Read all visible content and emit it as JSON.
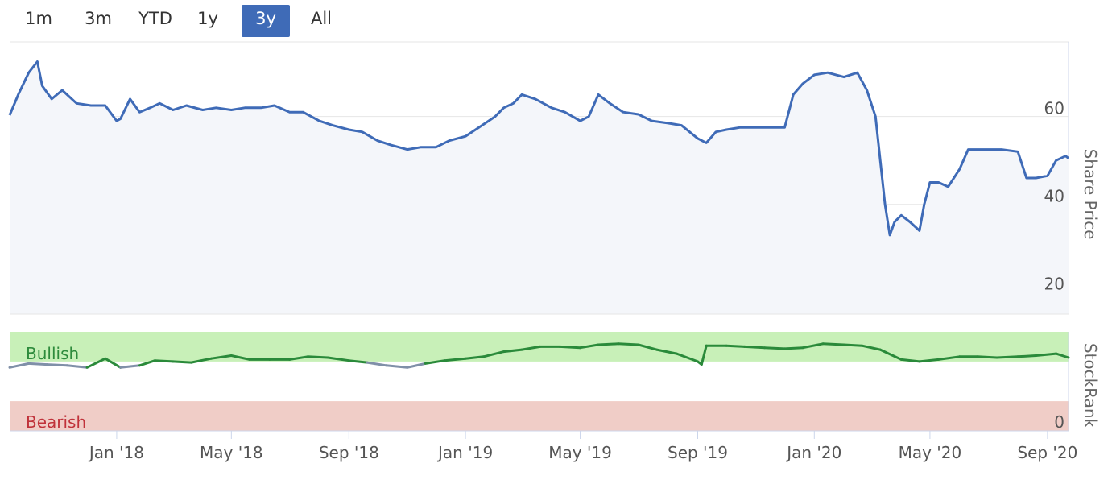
{
  "range_selector": {
    "buttons": [
      "1m",
      "3m",
      "YTD",
      "1y",
      "3y",
      "All"
    ],
    "active": "3y"
  },
  "colors": {
    "price_line": "#3f6bb7",
    "price_fill": "#f4f6fa",
    "bullish_band": "#c8f0b8",
    "bullish_text": "#2e8b3c",
    "bearish_band": "#f0cdc7",
    "bearish_text": "#c0323a",
    "rank_bullish_line": "#2a8a3a",
    "rank_other_line": "#8090a8",
    "active_button": "#3f6bb7"
  },
  "chart_data": [
    {
      "type": "line",
      "ylabel": "Share Price",
      "ylim": [
        15,
        77
      ],
      "yticks": [
        20,
        40,
        60
      ],
      "xlim": [
        "2017-09-11",
        "2020-09-23"
      ],
      "x": [
        "2017-09-11",
        "2017-09-20",
        "2017-10-01",
        "2017-10-10",
        "2017-10-15",
        "2017-10-25",
        "2017-11-05",
        "2017-11-20",
        "2017-12-05",
        "2017-12-20",
        "2018-01-01",
        "2018-01-05",
        "2018-01-15",
        "2018-01-25",
        "2018-02-05",
        "2018-02-15",
        "2018-03-01",
        "2018-03-15",
        "2018-04-01",
        "2018-04-15",
        "2018-05-01",
        "2018-05-15",
        "2018-06-01",
        "2018-06-15",
        "2018-07-01",
        "2018-07-15",
        "2018-08-01",
        "2018-08-15",
        "2018-09-01",
        "2018-09-15",
        "2018-10-01",
        "2018-10-15",
        "2018-11-01",
        "2018-11-15",
        "2018-12-01",
        "2018-12-15",
        "2019-01-01",
        "2019-01-15",
        "2019-02-01",
        "2019-02-10",
        "2019-02-20",
        "2019-03-01",
        "2019-03-15",
        "2019-04-01",
        "2019-04-15",
        "2019-05-01",
        "2019-05-10",
        "2019-05-20",
        "2019-06-01",
        "2019-06-15",
        "2019-07-01",
        "2019-07-15",
        "2019-08-01",
        "2019-08-15",
        "2019-09-01",
        "2019-09-10",
        "2019-09-20",
        "2019-10-01",
        "2019-10-15",
        "2019-11-01",
        "2019-11-15",
        "2019-12-01",
        "2019-12-10",
        "2019-12-20",
        "2020-01-01",
        "2020-01-15",
        "2020-02-01",
        "2020-02-15",
        "2020-02-25",
        "2020-03-05",
        "2020-03-10",
        "2020-03-15",
        "2020-03-20",
        "2020-03-25",
        "2020-04-01",
        "2020-04-10",
        "2020-04-20",
        "2020-04-25",
        "2020-05-01",
        "2020-05-10",
        "2020-05-20",
        "2020-06-01",
        "2020-06-10",
        "2020-06-20",
        "2020-07-01",
        "2020-07-15",
        "2020-08-01",
        "2020-08-10",
        "2020-08-20",
        "2020-09-01",
        "2020-09-10",
        "2020-09-20",
        "2020-09-23"
      ],
      "series": [
        {
          "values": [
            60.3,
            65,
            70,
            72.5,
            67,
            64,
            66,
            63,
            62.5,
            62.5,
            59,
            59.5,
            64,
            61,
            62,
            63,
            61.5,
            62.5,
            61.5,
            62,
            61.5,
            62,
            62,
            62.5,
            61,
            61,
            59,
            58,
            57,
            56.5,
            54.5,
            53.5,
            52.5,
            53,
            53,
            54.5,
            55.5,
            57.5,
            60,
            62,
            63,
            65,
            64,
            62,
            61,
            59,
            60,
            65,
            63,
            61,
            60.5,
            59,
            58.5,
            58,
            55,
            54,
            56.5,
            57,
            57.5,
            57.5,
            57.5,
            57.5,
            65,
            67.5,
            69.5,
            70,
            69,
            70,
            66,
            60,
            50,
            40,
            33,
            36,
            37.5,
            36,
            34,
            40,
            45,
            45,
            44,
            48,
            52.5,
            52.5,
            52.5,
            52.5,
            52,
            46,
            46,
            46.5,
            50,
            51,
            50.5
          ]
        }
      ]
    },
    {
      "type": "line",
      "ylabel": "StockRank",
      "ylim": [
        0,
        100
      ],
      "yticks": [
        0
      ],
      "bands": [
        {
          "label": "Bullish",
          "from": 70,
          "to": 100
        },
        {
          "label": "Bearish",
          "from": 0,
          "to": 30
        }
      ],
      "x": [
        "2017-09-11",
        "2017-10-01",
        "2017-10-20",
        "2017-11-10",
        "2017-12-01",
        "2017-12-20",
        "2018-01-05",
        "2018-01-25",
        "2018-02-10",
        "2018-03-01",
        "2018-03-20",
        "2018-04-10",
        "2018-05-01",
        "2018-05-20",
        "2018-06-10",
        "2018-07-01",
        "2018-07-20",
        "2018-08-10",
        "2018-09-01",
        "2018-09-20",
        "2018-10-10",
        "2018-11-01",
        "2018-11-20",
        "2018-12-10",
        "2019-01-01",
        "2019-01-20",
        "2019-02-10",
        "2019-03-01",
        "2019-03-20",
        "2019-04-10",
        "2019-05-01",
        "2019-05-20",
        "2019-06-10",
        "2019-07-01",
        "2019-07-20",
        "2019-08-10",
        "2019-09-01",
        "2019-09-05",
        "2019-09-10",
        "2019-10-01",
        "2019-10-20",
        "2019-11-10",
        "2019-12-01",
        "2019-12-20",
        "2020-01-10",
        "2020-02-01",
        "2020-02-20",
        "2020-03-10",
        "2020-04-01",
        "2020-04-20",
        "2020-05-10",
        "2020-06-01",
        "2020-06-20",
        "2020-07-10",
        "2020-08-01",
        "2020-08-20",
        "2020-09-10",
        "2020-09-23"
      ],
      "series": [
        {
          "values": [
            64,
            68,
            67,
            66,
            64,
            73,
            64,
            66,
            71,
            70,
            69,
            73,
            76,
            72,
            72,
            72,
            75,
            74,
            71,
            69,
            66,
            64,
            68,
            71,
            73,
            75,
            80,
            82,
            85,
            85,
            84,
            87,
            88,
            87,
            82,
            78,
            70,
            67,
            86,
            86,
            85,
            84,
            83,
            84,
            88,
            87,
            86,
            82,
            72,
            70,
            72,
            75,
            75,
            74,
            75,
            76,
            78,
            74
          ]
        }
      ]
    }
  ],
  "x_axis": {
    "ticks": [
      {
        "label": "Jan '18",
        "date": "2018-01-01"
      },
      {
        "label": "May '18",
        "date": "2018-05-01"
      },
      {
        "label": "Sep '18",
        "date": "2018-09-01"
      },
      {
        "label": "Jan '19",
        "date": "2019-01-01"
      },
      {
        "label": "May '19",
        "date": "2019-05-01"
      },
      {
        "label": "Sep '19",
        "date": "2019-09-01"
      },
      {
        "label": "Jan '20",
        "date": "2020-01-01"
      },
      {
        "label": "May '20",
        "date": "2020-05-01"
      },
      {
        "label": "Sep '20",
        "date": "2020-09-01"
      }
    ]
  }
}
